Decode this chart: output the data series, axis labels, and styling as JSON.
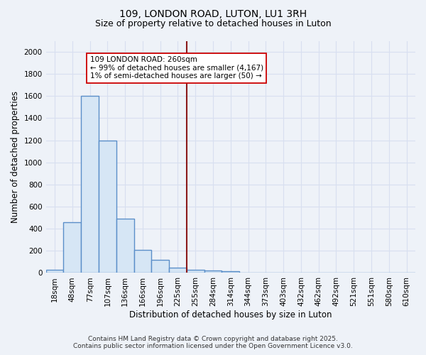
{
  "title_line1": "109, LONDON ROAD, LUTON, LU1 3RH",
  "title_line2": "Size of property relative to detached houses in Luton",
  "xlabel": "Distribution of detached houses by size in Luton",
  "ylabel": "Number of detached properties",
  "categories": [
    "18sqm",
    "48sqm",
    "77sqm",
    "107sqm",
    "136sqm",
    "166sqm",
    "196sqm",
    "225sqm",
    "255sqm",
    "284sqm",
    "314sqm",
    "344sqm",
    "373sqm",
    "403sqm",
    "432sqm",
    "462sqm",
    "492sqm",
    "521sqm",
    "551sqm",
    "580sqm",
    "610sqm"
  ],
  "values": [
    30,
    460,
    1600,
    1200,
    490,
    210,
    120,
    50,
    30,
    20,
    15,
    0,
    0,
    0,
    0,
    0,
    0,
    0,
    0,
    0,
    0
  ],
  "bar_color": "#d6e6f5",
  "bar_edge_color": "#5b8fc9",
  "bar_linewidth": 1.0,
  "ylim": [
    0,
    2100
  ],
  "yticks": [
    0,
    200,
    400,
    600,
    800,
    1000,
    1200,
    1400,
    1600,
    1800,
    2000
  ],
  "vline_index": 8,
  "vline_color": "#8b1a1a",
  "vline_linewidth": 1.5,
  "annotation_text": "109 LONDON ROAD: 260sqm\n← 99% of detached houses are smaller (4,167)\n1% of semi-detached houses are larger (50) →",
  "annotation_box_color": "#ffffff",
  "annotation_box_edge_color": "#cc0000",
  "footer_line1": "Contains HM Land Registry data © Crown copyright and database right 2025.",
  "footer_line2": "Contains public sector information licensed under the Open Government Licence v3.0.",
  "bg_color": "#eef2f8",
  "grid_color": "#d8dff0",
  "title_fontsize": 10,
  "subtitle_fontsize": 9,
  "axis_label_fontsize": 8.5,
  "tick_fontsize": 7.5,
  "footer_fontsize": 6.5,
  "annotation_fontsize": 7.5
}
